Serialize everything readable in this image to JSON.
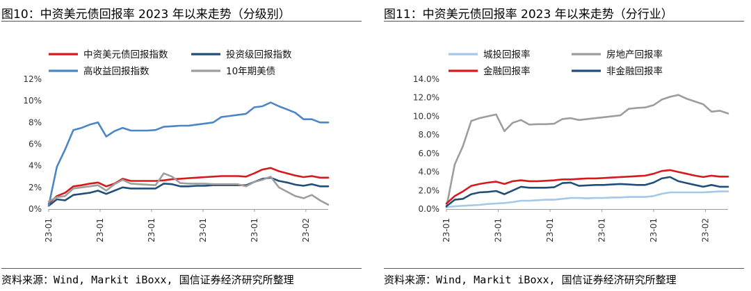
{
  "panels": [
    {
      "title": "图10：中资美元债回报率 2023 年以来走势（分级别）",
      "source": "资料来源：Wind, Markit iBoxx, 国信证券经济研究所整理"
    },
    {
      "title": "图11：中资美元债回报率 2023 年以来走势（分行业）",
      "source": "资料来源：Wind, Markit iBoxx, 国信证券经济研究所整理"
    }
  ],
  "chart_data": [
    {
      "type": "line",
      "title": "",
      "xlabel": "",
      "ylabel": "",
      "ylim": [
        0,
        12
      ],
      "y_ticks": [
        "0%",
        "2%",
        "4%",
        "6%",
        "8%",
        "10%",
        "12%"
      ],
      "x_tick_labels": [
        "23-01",
        "23-01",
        "23-01",
        "23-01",
        "23-01",
        "23-02"
      ],
      "legend_placement": "top",
      "grid": false,
      "series": [
        {
          "name": "中资美元债回报指数",
          "color": "#d7191c",
          "values": [
            0.5,
            1.2,
            1.5,
            2.1,
            2.2,
            2.35,
            2.45,
            2.1,
            2.35,
            2.8,
            2.6,
            2.6,
            2.6,
            2.6,
            2.65,
            2.75,
            2.8,
            2.85,
            2.9,
            2.95,
            3.0,
            3.05,
            3.05,
            3.05,
            3.0,
            3.3,
            3.65,
            3.8,
            3.5,
            3.3,
            3.1,
            2.95,
            3.05,
            2.9,
            2.9
          ]
        },
        {
          "name": "投资级回报指数",
          "color": "#1f4e79",
          "values": [
            0.3,
            0.9,
            0.8,
            1.3,
            1.4,
            1.5,
            1.7,
            1.4,
            1.7,
            2.0,
            1.9,
            1.9,
            1.9,
            1.9,
            2.35,
            2.3,
            2.1,
            2.1,
            2.15,
            2.15,
            2.2,
            2.2,
            2.2,
            2.2,
            2.2,
            2.5,
            2.8,
            2.9,
            2.6,
            2.45,
            2.25,
            2.15,
            2.3,
            2.1,
            2.1
          ]
        },
        {
          "name": "高收益回报指数",
          "color": "#4a86c6",
          "values": [
            0.3,
            3.9,
            5.5,
            7.3,
            7.5,
            7.8,
            8.0,
            6.7,
            7.2,
            7.5,
            7.25,
            7.25,
            7.25,
            7.3,
            7.6,
            7.65,
            7.7,
            7.7,
            7.8,
            7.9,
            8.0,
            8.5,
            8.6,
            8.7,
            8.8,
            9.4,
            9.5,
            9.85,
            9.5,
            9.2,
            8.9,
            8.3,
            8.3,
            8.0,
            8.0
          ]
        },
        {
          "name": "10年期美债",
          "color": "#9d9d9d",
          "values": [
            0.7,
            1.1,
            1.2,
            1.9,
            2.0,
            2.1,
            2.2,
            1.7,
            2.3,
            2.7,
            2.35,
            2.3,
            2.25,
            2.2,
            3.3,
            3.0,
            2.4,
            2.35,
            2.35,
            2.35,
            2.3,
            2.3,
            2.3,
            2.3,
            2.1,
            2.5,
            2.7,
            3.0,
            2.0,
            1.6,
            1.2,
            1.0,
            1.3,
            0.8,
            0.4
          ]
        }
      ]
    },
    {
      "type": "line",
      "title": "",
      "xlabel": "",
      "ylabel": "",
      "ylim": [
        0,
        14
      ],
      "y_ticks": [
        "0.0%",
        "2.0%",
        "4.0%",
        "6.0%",
        "8.0%",
        "10.0%",
        "12.0%",
        "14.0%"
      ],
      "x_tick_labels": [
        "23-01",
        "23-01",
        "23-01",
        "23-01",
        "23-01",
        "23-02"
      ],
      "legend_placement": "top",
      "grid": false,
      "series": [
        {
          "name": "城投回报率",
          "color": "#a4c8e8",
          "values": [
            0.2,
            0.3,
            0.35,
            0.4,
            0.45,
            0.55,
            0.6,
            0.65,
            0.75,
            0.9,
            0.9,
            0.95,
            1.0,
            1.0,
            1.1,
            1.2,
            1.2,
            1.15,
            1.2,
            1.2,
            1.25,
            1.25,
            1.3,
            1.3,
            1.3,
            1.4,
            1.65,
            1.8,
            1.8,
            1.8,
            1.8,
            1.8,
            1.85,
            1.9,
            1.9
          ]
        },
        {
          "name": "房地产回报率",
          "color": "#9d9d9d",
          "values": [
            0.2,
            4.8,
            6.8,
            9.5,
            9.8,
            10.0,
            10.2,
            8.4,
            9.3,
            9.6,
            9.1,
            9.15,
            9.15,
            9.2,
            9.7,
            9.8,
            9.6,
            9.7,
            9.8,
            9.9,
            10.0,
            10.1,
            10.8,
            10.9,
            10.95,
            11.2,
            11.8,
            12.1,
            12.3,
            11.9,
            11.6,
            11.3,
            10.5,
            10.6,
            10.3
          ]
        },
        {
          "name": "金融回报率",
          "color": "#d7191c",
          "values": [
            0.6,
            1.4,
            1.9,
            2.5,
            2.7,
            2.85,
            2.95,
            2.7,
            3.0,
            3.1,
            3.0,
            3.0,
            3.05,
            3.1,
            3.2,
            3.2,
            3.25,
            3.3,
            3.3,
            3.35,
            3.4,
            3.45,
            3.5,
            3.55,
            3.6,
            3.8,
            4.1,
            4.2,
            4.0,
            3.8,
            3.6,
            3.45,
            3.6,
            3.5,
            3.5
          ]
        },
        {
          "name": "非金融回报率",
          "color": "#1f4e79",
          "values": [
            0.3,
            1.0,
            1.1,
            1.6,
            1.8,
            1.85,
            1.95,
            1.6,
            2.0,
            2.4,
            2.3,
            2.3,
            2.3,
            2.35,
            2.8,
            2.85,
            2.5,
            2.55,
            2.6,
            2.6,
            2.65,
            2.7,
            2.65,
            2.6,
            2.6,
            2.85,
            3.3,
            3.45,
            3.0,
            2.8,
            2.6,
            2.4,
            2.6,
            2.4,
            2.4
          ]
        }
      ]
    }
  ]
}
